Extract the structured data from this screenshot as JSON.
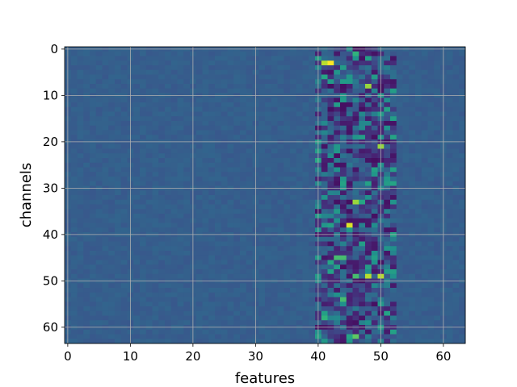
{
  "chart_data": {
    "type": "heatmap",
    "xlabel": "features",
    "ylabel": "channels",
    "xlim": [
      -0.5,
      63.5
    ],
    "ylim": [
      63.5,
      -0.5
    ],
    "y_inverted": true,
    "x_ticks": [
      0,
      10,
      20,
      30,
      40,
      50,
      60
    ],
    "y_ticks": [
      0,
      10,
      20,
      30,
      40,
      50,
      60
    ],
    "x_tick_labels": [
      "0",
      "10",
      "20",
      "30",
      "40",
      "50",
      "60"
    ],
    "y_tick_labels": [
      "0",
      "10",
      "20",
      "30",
      "40",
      "50",
      "60"
    ],
    "grid": true,
    "colormap": "viridis",
    "n_rows": 64,
    "n_cols": 64,
    "background_value": 0.3,
    "active_band_columns": [
      40,
      52
    ],
    "hotspots": [
      {
        "row": 3,
        "col": 42,
        "value": 1.0
      },
      {
        "row": 3,
        "col": 41,
        "value": 0.9
      },
      {
        "row": 8,
        "col": 48,
        "value": 0.85
      },
      {
        "row": 21,
        "col": 50,
        "value": 0.85
      },
      {
        "row": 33,
        "col": 46,
        "value": 0.85
      },
      {
        "row": 38,
        "col": 45,
        "value": 0.95
      },
      {
        "row": 49,
        "col": 48,
        "value": 0.9
      },
      {
        "row": 49,
        "col": 50,
        "value": 0.9
      },
      {
        "row": 49,
        "col": 46,
        "value": 0.7
      },
      {
        "row": 45,
        "col": 43,
        "value": 0.7
      },
      {
        "row": 45,
        "col": 44,
        "value": 0.7
      },
      {
        "row": 54,
        "col": 44,
        "value": 0.7
      },
      {
        "row": 58,
        "col": 41,
        "value": 0.65
      },
      {
        "row": 62,
        "col": 46,
        "value": 0.75
      },
      {
        "row": 24,
        "col": 40,
        "value": 0.6
      },
      {
        "row": 1,
        "col": 46,
        "value": 0.65
      }
    ],
    "colors": {
      "background": "#ffffff",
      "grid": "#b0b0b0",
      "axis": "#000000"
    }
  }
}
